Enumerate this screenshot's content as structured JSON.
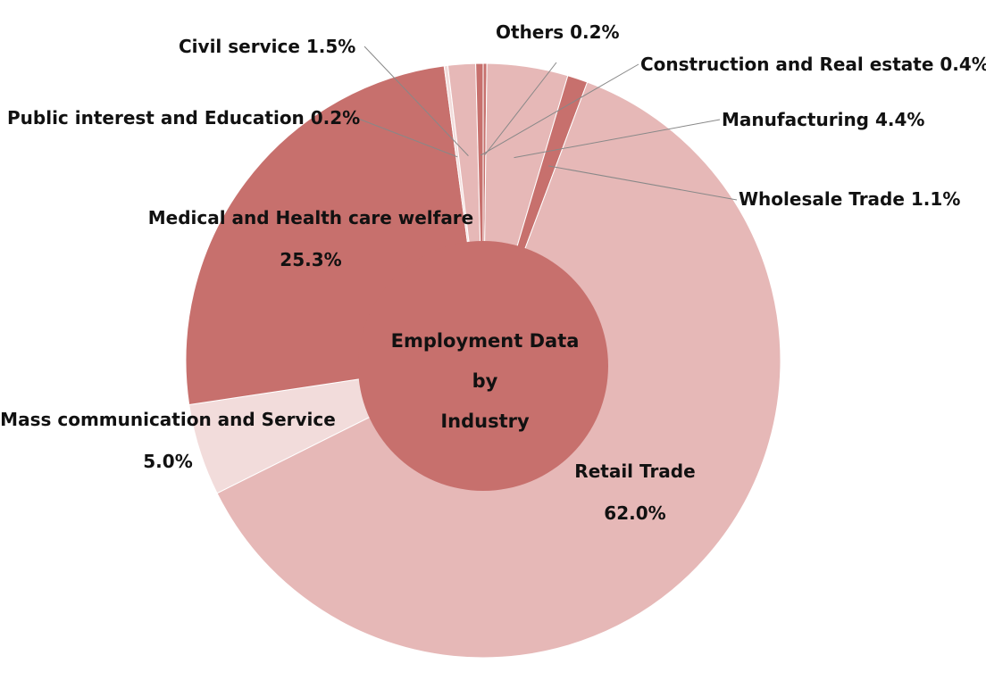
{
  "chart_data": {
    "type": "pie",
    "center_label": [
      "Employment Data",
      "by",
      "Industry"
    ],
    "slices": [
      {
        "name": "Others",
        "value": 0.2,
        "label_text": "Others 0.2%",
        "color": "#c7706d"
      },
      {
        "name": "Manufacturing",
        "value": 4.4,
        "label_text": "Manufacturing 4.4%",
        "color": "#e6b8b7"
      },
      {
        "name": "Wholesale Trade",
        "value": 1.1,
        "label_text": "Wholesale Trade 1.1%",
        "color": "#c7706d"
      },
      {
        "name": "Retail Trade",
        "value": 62.0,
        "label_lines": [
          "Retail Trade",
          "62.0%"
        ],
        "color": "#e6b8b7"
      },
      {
        "name": "Mass communication and Service",
        "value": 5.0,
        "label_lines": [
          "Mass communication and Service",
          "5.0%"
        ],
        "color": "#f2dcdb"
      },
      {
        "name": "Medical and Health care welfare",
        "value": 25.3,
        "label_lines": [
          "Medical and Health care welfare",
          "25.3%"
        ],
        "color": "#c7706d"
      },
      {
        "name": "Public interest and Education",
        "value": 0.2,
        "label_text": "Public interest and Education 0.2%",
        "color": "#f2dcdb"
      },
      {
        "name": "Civil service",
        "value": 1.5,
        "label_text": "Civil service 1.5%",
        "color": "#e6b8b7"
      },
      {
        "name": "Construction and Real estate",
        "value": 0.4,
        "label_text": "Construction and Real estate 0.4%",
        "color": "#c7706d"
      }
    ],
    "center_color": "#c7706d",
    "leader_color": "#888888"
  }
}
